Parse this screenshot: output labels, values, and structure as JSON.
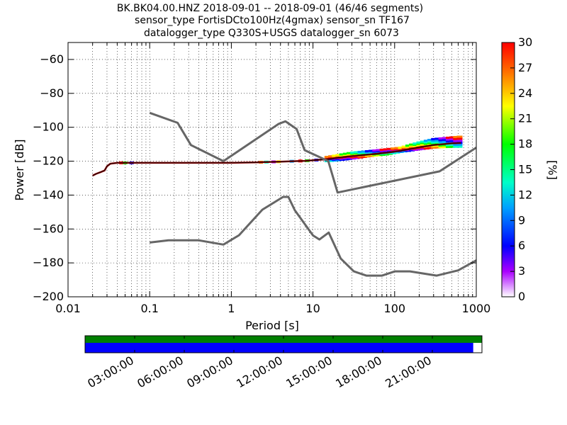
{
  "title_lines": [
    "BK.BK04.00.HNZ   2018-09-01 -- 2018-09-01  (46/46 segments)",
    "sensor_type FortisDCto100Hz(4gmax) sensor_sn TF167",
    "datalogger_type Q330S+USGS datalogger_sn 6073"
  ],
  "chart_data": [
    {
      "type": "heatmap",
      "xlabel": "Period [s]",
      "ylabel": "Power [dB]",
      "x_scale": "log",
      "xlim": [
        0.01,
        1000
      ],
      "ylim": [
        -200,
        -50
      ],
      "x_ticks": [
        0.01,
        0.1,
        1,
        10,
        100,
        1000
      ],
      "x_tick_labels": [
        "0.01",
        "0.1",
        "1",
        "10",
        "100",
        "1000"
      ],
      "y_ticks": [
        -200,
        -180,
        -160,
        -140,
        -120,
        -100,
        -80,
        -60
      ],
      "y_tick_labels": [
        "−200",
        "−180",
        "−160",
        "−140",
        "−120",
        "−100",
        "−80",
        "−60"
      ],
      "grid": true,
      "colorbar": {
        "label": "[%]",
        "range": [
          0,
          30
        ],
        "ticks": [
          "0",
          "3",
          "6",
          "9",
          "12",
          "15",
          "18",
          "21",
          "24",
          "27",
          "30"
        ]
      },
      "noise_model_high": {
        "x": [
          0.1,
          0.22,
          0.32,
          0.8,
          3.8,
          4.6,
          6.3,
          7.9,
          15.4,
          20,
          354.8,
          1000
        ],
        "y": [
          -91.5,
          -97.4,
          -110.5,
          -120,
          -98,
          -96.5,
          -101,
          -113.5,
          -120,
          -138.5,
          -126,
          -112
        ]
      },
      "noise_model_low": {
        "x": [
          0.1,
          0.17,
          0.4,
          0.8,
          1.24,
          2.4,
          4.3,
          5,
          6,
          10,
          12,
          15.6,
          21.9,
          31.6,
          45,
          70,
          101,
          154,
          328,
          600,
          1000
        ],
        "y": [
          -168,
          -166.7,
          -166.7,
          -169.2,
          -163.7,
          -148.6,
          -141.1,
          -141.1,
          -149,
          -163.8,
          -166.2,
          -162.1,
          -177.5,
          -185,
          -187.5,
          -187.5,
          -185,
          -185,
          -187.5,
          -184.4,
          -178.5
        ]
      },
      "psd_mode_curve": {
        "x": [
          0.02,
          0.022,
          0.025,
          0.028,
          0.03,
          0.033,
          0.04,
          0.06,
          0.1,
          0.5,
          1,
          2,
          4,
          6,
          8,
          10,
          15,
          20,
          30,
          50,
          80,
          120,
          200,
          300,
          500,
          650
        ],
        "y": [
          -128.5,
          -127.5,
          -126.5,
          -125.5,
          -123,
          -121.5,
          -121,
          -121,
          -121,
          -121,
          -121,
          -120.7,
          -120.3,
          -120,
          -119.8,
          -119.5,
          -118.8,
          -118,
          -117,
          -116,
          -115,
          -113.8,
          -111.8,
          -110.5,
          -109.5,
          -109.3
        ]
      },
      "psd_spread": {
        "x": [
          15,
          20,
          30,
          50,
          80,
          120,
          200,
          300,
          500,
          650
        ],
        "y_min": [
          -120,
          -119.5,
          -118.5,
          -117,
          -116,
          -114.5,
          -113,
          -112,
          -111.5,
          -111.5
        ],
        "y_max": [
          -117.5,
          -116.5,
          -115,
          -114,
          -113,
          -112,
          -109,
          -107,
          -106,
          -105.5
        ]
      }
    },
    {
      "type": "timeline",
      "x_tick_labels": [
        "03:00:00",
        "06:00:00",
        "09:00:00",
        "12:00:00",
        "15:00:00",
        "18:00:00",
        "21:00:00"
      ],
      "data_coverage_fraction": 0.978,
      "colors": {
        "coverage_row": "#008000",
        "data_row": "#0000ff"
      }
    }
  ]
}
